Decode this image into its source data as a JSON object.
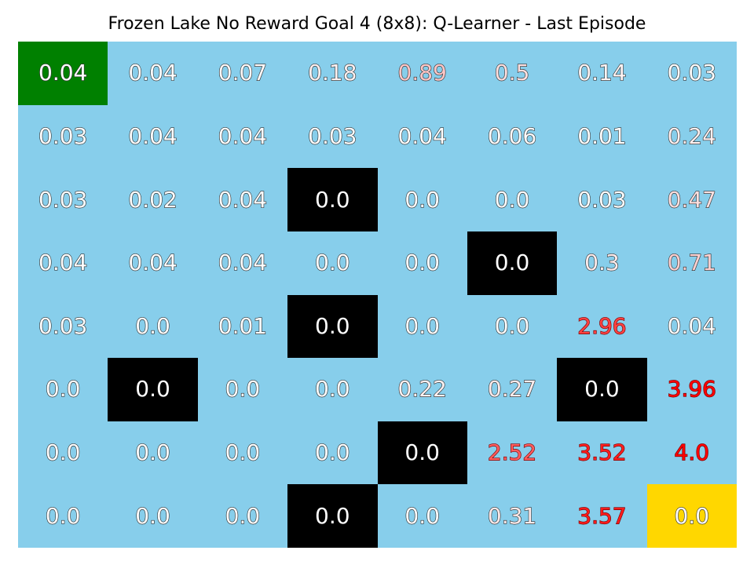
{
  "title": "Frozen Lake No Reward Goal 4 (8x8): Q-Learner - Last Episode",
  "colors": {
    "frozen": "#87ceeb",
    "hole": "#000000",
    "start": "#008000",
    "goal": "#ffd700",
    "value_fill_default": "#ffffff",
    "value_outline": "#333333"
  },
  "grid": [
    [
      {
        "value": "0.04",
        "type": "start",
        "tone": 0
      },
      {
        "value": "0.04",
        "type": "frozen",
        "tone": 0
      },
      {
        "value": "0.07",
        "type": "frozen",
        "tone": 0.02
      },
      {
        "value": "0.18",
        "type": "frozen",
        "tone": 0.05
      },
      {
        "value": "0.89",
        "type": "frozen",
        "tone": 0.22
      },
      {
        "value": "0.5",
        "type": "frozen",
        "tone": 0.12
      },
      {
        "value": "0.14",
        "type": "frozen",
        "tone": 0.04
      },
      {
        "value": "0.03",
        "type": "frozen",
        "tone": 0
      }
    ],
    [
      {
        "value": "0.03",
        "type": "frozen",
        "tone": 0
      },
      {
        "value": "0.04",
        "type": "frozen",
        "tone": 0
      },
      {
        "value": "0.04",
        "type": "frozen",
        "tone": 0
      },
      {
        "value": "0.03",
        "type": "frozen",
        "tone": 0
      },
      {
        "value": "0.04",
        "type": "frozen",
        "tone": 0
      },
      {
        "value": "0.06",
        "type": "frozen",
        "tone": 0.01
      },
      {
        "value": "0.01",
        "type": "frozen",
        "tone": 0
      },
      {
        "value": "0.24",
        "type": "frozen",
        "tone": 0.06
      }
    ],
    [
      {
        "value": "0.03",
        "type": "frozen",
        "tone": 0
      },
      {
        "value": "0.02",
        "type": "frozen",
        "tone": 0
      },
      {
        "value": "0.04",
        "type": "frozen",
        "tone": 0
      },
      {
        "value": "0.0",
        "type": "hole",
        "tone": 0
      },
      {
        "value": "0.0",
        "type": "frozen",
        "tone": 0
      },
      {
        "value": "0.0",
        "type": "frozen",
        "tone": 0
      },
      {
        "value": "0.03",
        "type": "frozen",
        "tone": 0
      },
      {
        "value": "0.47",
        "type": "frozen",
        "tone": 0.12
      }
    ],
    [
      {
        "value": "0.04",
        "type": "frozen",
        "tone": 0
      },
      {
        "value": "0.04",
        "type": "frozen",
        "tone": 0
      },
      {
        "value": "0.04",
        "type": "frozen",
        "tone": 0
      },
      {
        "value": "0.0",
        "type": "frozen",
        "tone": 0
      },
      {
        "value": "0.0",
        "type": "frozen",
        "tone": 0
      },
      {
        "value": "0.0",
        "type": "hole",
        "tone": 0
      },
      {
        "value": "0.3",
        "type": "frozen",
        "tone": 0.07
      },
      {
        "value": "0.71",
        "type": "frozen",
        "tone": 0.18
      }
    ],
    [
      {
        "value": "0.03",
        "type": "frozen",
        "tone": 0
      },
      {
        "value": "0.0",
        "type": "frozen",
        "tone": 0
      },
      {
        "value": "0.01",
        "type": "frozen",
        "tone": 0
      },
      {
        "value": "0.0",
        "type": "hole",
        "tone": 0
      },
      {
        "value": "0.0",
        "type": "frozen",
        "tone": 0
      },
      {
        "value": "0.0",
        "type": "frozen",
        "tone": 0
      },
      {
        "value": "2.96",
        "type": "frozen",
        "tone": 0.74
      },
      {
        "value": "0.04",
        "type": "frozen",
        "tone": 0
      }
    ],
    [
      {
        "value": "0.0",
        "type": "frozen",
        "tone": 0
      },
      {
        "value": "0.0",
        "type": "hole",
        "tone": 0
      },
      {
        "value": "0.0",
        "type": "frozen",
        "tone": 0
      },
      {
        "value": "0.0",
        "type": "frozen",
        "tone": 0
      },
      {
        "value": "0.22",
        "type": "frozen",
        "tone": 0.05
      },
      {
        "value": "0.27",
        "type": "frozen",
        "tone": 0.07
      },
      {
        "value": "0.0",
        "type": "hole",
        "tone": 0
      },
      {
        "value": "3.96",
        "type": "frozen",
        "tone": 0.99
      }
    ],
    [
      {
        "value": "0.0",
        "type": "frozen",
        "tone": 0
      },
      {
        "value": "0.0",
        "type": "frozen",
        "tone": 0
      },
      {
        "value": "0.0",
        "type": "frozen",
        "tone": 0
      },
      {
        "value": "0.0",
        "type": "frozen",
        "tone": 0
      },
      {
        "value": "0.0",
        "type": "hole",
        "tone": 0
      },
      {
        "value": "2.52",
        "type": "frozen",
        "tone": 0.63
      },
      {
        "value": "3.52",
        "type": "frozen",
        "tone": 0.88
      },
      {
        "value": "4.0",
        "type": "frozen",
        "tone": 1.0
      }
    ],
    [
      {
        "value": "0.0",
        "type": "frozen",
        "tone": 0
      },
      {
        "value": "0.0",
        "type": "frozen",
        "tone": 0
      },
      {
        "value": "0.0",
        "type": "frozen",
        "tone": 0
      },
      {
        "value": "0.0",
        "type": "hole",
        "tone": 0
      },
      {
        "value": "0.0",
        "type": "frozen",
        "tone": 0
      },
      {
        "value": "0.31",
        "type": "frozen",
        "tone": 0.08
      },
      {
        "value": "3.57",
        "type": "frozen",
        "tone": 0.89
      },
      {
        "value": "0.0",
        "type": "goal",
        "tone": 0
      }
    ]
  ]
}
